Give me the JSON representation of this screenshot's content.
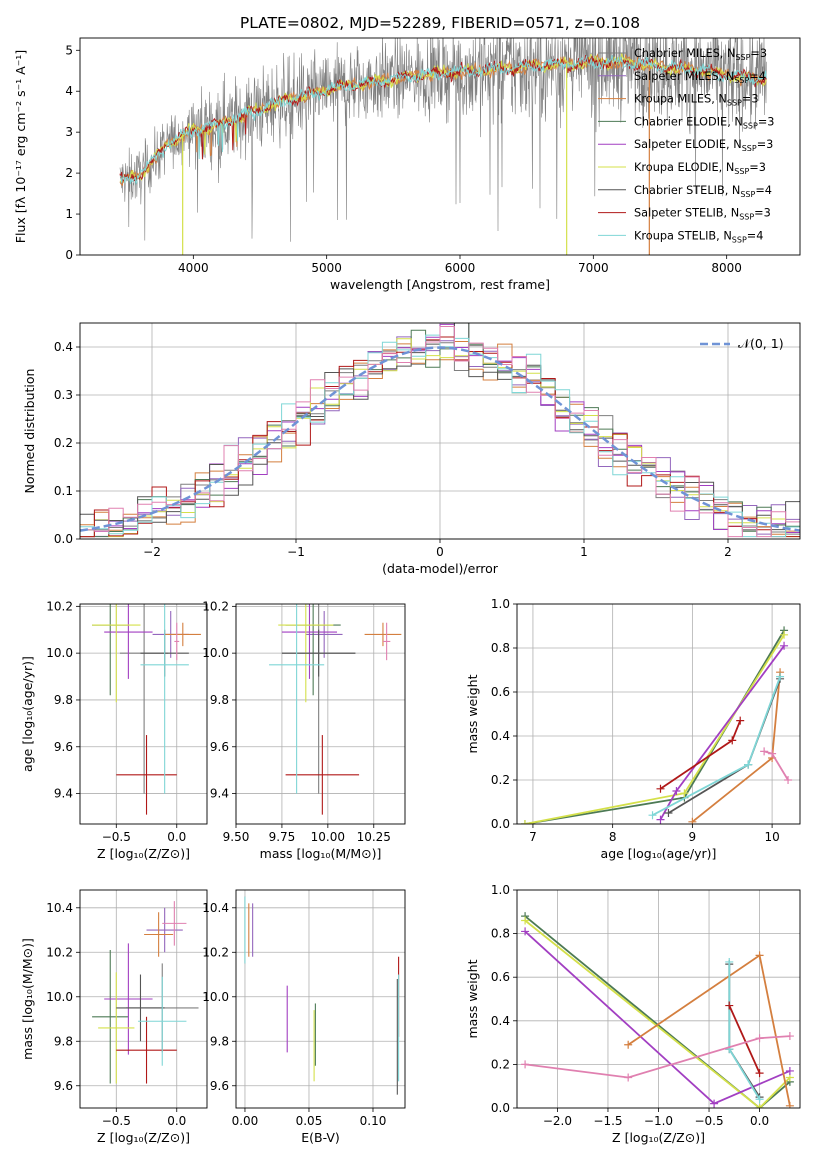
{
  "figure_title": "PLATE=0802, MJD=52289, FIBERID=0571, z=0.108",
  "colors": {
    "Chabrier MILES": "#7f7f7f",
    "Salpeter MILES": "#9467bd",
    "Kroupa MILES": "#d47f3f",
    "Chabrier ELODIE": "#4d7a55",
    "Salpeter ELODIE": "#a23fc2",
    "Kroupa ELODIE": "#d4e04a",
    "Chabrier STELIB": "#555555",
    "Salpeter STELIB": "#b01818",
    "Kroupa STELIB": "#7fd6d6",
    "normal_curve": "#6f93d6",
    "pink": "#e080b0"
  },
  "chart_data": [
    {
      "id": "spectrum",
      "type": "line",
      "title": "PLATE=0802, MJD=52289, FIBERID=0571, z=0.108",
      "xlabel": "wavelength [Angstrom, rest frame]",
      "ylabel": "Flux [fλ 10⁻¹⁷ erg cm⁻² s⁻¹ A⁻¹]",
      "xlim": [
        3150,
        8550
      ],
      "ylim": [
        0,
        5.3
      ],
      "xticks": [
        4000,
        5000,
        6000,
        7000,
        8000
      ],
      "yticks": [
        0,
        1,
        2,
        3,
        4,
        5
      ],
      "legend_position": "right",
      "legend": [
        {
          "label": "Chabrier MILES, N",
          "sub": "SSP",
          "suffix": "=3"
        },
        {
          "label": "Salpeter MILES, N",
          "sub": "SSP",
          "suffix": "=4"
        },
        {
          "label": "Kroupa MILES, N",
          "sub": "SSP",
          "suffix": "=3"
        },
        {
          "label": "Chabrier ELODIE, N",
          "sub": "SSP",
          "suffix": "=3"
        },
        {
          "label": "Salpeter ELODIE, N",
          "sub": "SSP",
          "suffix": "=3"
        },
        {
          "label": "Kroupa ELODIE, N",
          "sub": "SSP",
          "suffix": "=3"
        },
        {
          "label": "Chabrier STELIB, N",
          "sub": "SSP",
          "suffix": "=4"
        },
        {
          "label": "Salpeter STELIB, N",
          "sub": "SSP",
          "suffix": "=3"
        },
        {
          "label": "Kroupa STELIB, N",
          "sub": "SSP",
          "suffix": "=4"
        }
      ],
      "model_continuum": {
        "x": [
          3450,
          3600,
          3700,
          3800,
          3900,
          4000,
          4100,
          4200,
          4300,
          4400,
          4500,
          4700,
          4900,
          5100,
          5300,
          5500,
          5700,
          5900,
          6100,
          6300,
          6500,
          6700,
          6900,
          7100,
          7300,
          7500,
          7700,
          7900,
          8100,
          8300
        ],
        "y": [
          1.8,
          1.95,
          2.3,
          2.7,
          2.9,
          3.05,
          3.1,
          3.2,
          3.3,
          3.45,
          3.55,
          3.8,
          3.95,
          4.1,
          4.2,
          4.3,
          4.4,
          4.45,
          4.5,
          4.55,
          4.6,
          4.65,
          4.7,
          4.72,
          4.7,
          4.6,
          4.55,
          4.45,
          4.35,
          4.3
        ]
      }
    },
    {
      "id": "residuals",
      "type": "bar",
      "xlabel": "(data-model)/error",
      "ylabel": "Normed distribution",
      "xlim": [
        -2.5,
        2.5
      ],
      "ylim": [
        0,
        0.45
      ],
      "xticks": [
        -2,
        -1,
        0,
        1,
        2
      ],
      "yticks": [
        0.0,
        0.1,
        0.2,
        0.3,
        0.4
      ],
      "legend": [
        "𝒩(0, 1)"
      ],
      "bin_width": 0.1
    },
    {
      "id": "age_vs_Z",
      "type": "scatter",
      "xlabel": "Z [log₁₀(Z/Z⊙)]",
      "ylabel": "age  [log₁₀(age/yr)]",
      "xlim": [
        -0.8,
        0.25
      ],
      "ylim": [
        9.27,
        10.21
      ],
      "xticks": [
        -0.5,
        0.0
      ],
      "yticks": [
        9.4,
        9.6,
        9.8,
        10.0,
        10.2
      ],
      "points": [
        {
          "series": "Chabrier MILES",
          "x": -0.27,
          "y": 10.0,
          "xerr": 0.2,
          "yerr": 0.6
        },
        {
          "series": "Salpeter MILES",
          "x": -0.05,
          "y": 10.08,
          "xerr": 0.15,
          "yerr": 0.1
        },
        {
          "series": "Kroupa MILES",
          "x": 0.05,
          "y": 10.08,
          "xerr": 0.15,
          "yerr": 0.05
        },
        {
          "series": "Chabrier ELODIE",
          "x": -0.55,
          "y": 10.12,
          "xerr": 0.15,
          "yerr": 0.3
        },
        {
          "series": "Salpeter ELODIE",
          "x": -0.4,
          "y": 10.09,
          "xerr": 0.2,
          "yerr": 0.2
        },
        {
          "series": "Kroupa ELODIE",
          "x": -0.5,
          "y": 10.12,
          "xerr": 0.2,
          "yerr": 0.33
        },
        {
          "series": "Chabrier STELIB",
          "x": -0.1,
          "y": 10.0,
          "xerr": 0.2,
          "yerr": 0.1
        },
        {
          "series": "Salpeter STELIB",
          "x": -0.25,
          "y": 9.48,
          "xerr": 0.25,
          "yerr": 0.17
        },
        {
          "series": "Kroupa STELIB",
          "x": -0.1,
          "y": 9.95,
          "xerr": 0.2,
          "yerr": 0.55
        },
        {
          "series": "pink",
          "x": 0.0,
          "y": 10.05,
          "xerr": 0.02,
          "yerr": 0.08
        }
      ]
    },
    {
      "id": "age_vs_mass",
      "type": "scatter",
      "xlabel": "mass [log₁₀(M/M⊙)]",
      "ylabel": "",
      "xlim": [
        9.5,
        10.42
      ],
      "ylim": [
        9.27,
        10.21
      ],
      "xticks": [
        9.5,
        9.75,
        10.0,
        10.25
      ],
      "yticks": [
        9.4,
        9.6,
        9.8,
        10.0,
        10.2
      ],
      "points": [
        {
          "series": "Chabrier MILES",
          "x": 9.95,
          "y": 10.0,
          "xerr": 0.2,
          "yerr": 0.6
        },
        {
          "series": "Salpeter MILES",
          "x": 9.98,
          "y": 10.08,
          "xerr": 0.1,
          "yerr": 0.1
        },
        {
          "series": "Kroupa MILES",
          "x": 10.3,
          "y": 10.08,
          "xerr": 0.1,
          "yerr": 0.05
        },
        {
          "series": "Chabrier ELODIE",
          "x": 9.92,
          "y": 10.12,
          "xerr": 0.15,
          "yerr": 0.3
        },
        {
          "series": "Salpeter ELODIE",
          "x": 9.9,
          "y": 10.09,
          "xerr": 0.15,
          "yerr": 0.2
        },
        {
          "series": "Kroupa ELODIE",
          "x": 9.88,
          "y": 10.12,
          "xerr": 0.15,
          "yerr": 0.33
        },
        {
          "series": "Chabrier STELIB",
          "x": 9.95,
          "y": 10.0,
          "xerr": 0.2,
          "yerr": 0.1
        },
        {
          "series": "Salpeter STELIB",
          "x": 9.97,
          "y": 9.48,
          "xerr": 0.2,
          "yerr": 0.17
        },
        {
          "series": "Kroupa STELIB",
          "x": 9.83,
          "y": 9.95,
          "xerr": 0.15,
          "yerr": 0.55
        },
        {
          "series": "pink",
          "x": 10.32,
          "y": 10.05,
          "xerr": 0.02,
          "yerr": 0.08
        }
      ]
    },
    {
      "id": "massweight_vs_age",
      "type": "line",
      "xlabel": "age  [log₁₀(age/yr)]",
      "ylabel": "mass weight",
      "xlim": [
        6.8,
        10.35
      ],
      "ylim": [
        0,
        1
      ],
      "xticks": [
        7,
        8,
        9,
        10
      ],
      "yticks": [
        0.0,
        0.2,
        0.4,
        0.6,
        0.8,
        1.0
      ],
      "series": [
        {
          "name": "Chabrier ELODIE",
          "x": [
            6.9,
            8.9,
            10.15
          ],
          "y": [
            0.0,
            0.12,
            0.88
          ]
        },
        {
          "name": "Kroupa ELODIE",
          "x": [
            6.9,
            8.9,
            10.15
          ],
          "y": [
            0.0,
            0.14,
            0.86
          ]
        },
        {
          "name": "Salpeter ELODIE",
          "x": [
            8.6,
            8.8,
            10.15
          ],
          "y": [
            0.02,
            0.15,
            0.81
          ]
        },
        {
          "name": "Kroupa MILES",
          "x": [
            9.0,
            10.0,
            10.1
          ],
          "y": [
            0.01,
            0.3,
            0.69
          ]
        },
        {
          "name": "Chabrier STELIB",
          "x": [
            8.7,
            9.7,
            10.1
          ],
          "y": [
            0.05,
            0.27,
            0.66
          ]
        },
        {
          "name": "Kroupa STELIB",
          "x": [
            8.5,
            9.7,
            10.1
          ],
          "y": [
            0.04,
            0.27,
            0.67
          ]
        },
        {
          "name": "Salpeter STELIB",
          "x": [
            8.6,
            9.5,
            9.6
          ],
          "y": [
            0.16,
            0.38,
            0.47
          ]
        },
        {
          "name": "pink",
          "x": [
            9.9,
            10.0,
            10.2
          ],
          "y": [
            0.33,
            0.32,
            0.2
          ]
        }
      ]
    },
    {
      "id": "mass_vs_Z",
      "type": "scatter",
      "xlabel": "Z [log₁₀(Z/Z⊙)]",
      "ylabel": "mass [log₁₀(M/M⊙)]",
      "xlim": [
        -0.8,
        0.25
      ],
      "ylim": [
        9.5,
        10.48
      ],
      "xticks": [
        -0.5,
        0.0
      ],
      "yticks": [
        9.6,
        9.8,
        10.0,
        10.2,
        10.4
      ],
      "points": [
        {
          "series": "Chabrier MILES",
          "x": -0.12,
          "y": 9.95,
          "xerr": 0.3,
          "yerr": 0.2
        },
        {
          "series": "Salpeter MILES",
          "x": -0.1,
          "y": 10.3,
          "xerr": 0.15,
          "yerr": 0.1
        },
        {
          "series": "Kroupa MILES",
          "x": -0.15,
          "y": 10.28,
          "xerr": 0.12,
          "yerr": 0.1
        },
        {
          "series": "Chabrier ELODIE",
          "x": -0.55,
          "y": 9.91,
          "xerr": 0.15,
          "yerr": 0.3
        },
        {
          "series": "Salpeter ELODIE",
          "x": -0.4,
          "y": 9.99,
          "xerr": 0.2,
          "yerr": 0.25
        },
        {
          "series": "Kroupa ELODIE",
          "x": -0.5,
          "y": 9.86,
          "xerr": 0.15,
          "yerr": 0.25
        },
        {
          "series": "Chabrier STELIB",
          "x": -0.3,
          "y": 9.95,
          "xerr": 0.2,
          "yerr": 0.15
        },
        {
          "series": "Salpeter STELIB",
          "x": -0.25,
          "y": 9.76,
          "xerr": 0.25,
          "yerr": 0.15
        },
        {
          "series": "Kroupa STELIB",
          "x": -0.12,
          "y": 9.89,
          "xerr": 0.2,
          "yerr": 0.2
        },
        {
          "series": "pink",
          "x": -0.02,
          "y": 10.33,
          "xerr": 0.1,
          "yerr": 0.1
        }
      ]
    },
    {
      "id": "mass_vs_EBV",
      "type": "scatter",
      "xlabel": "E(B-V)",
      "ylabel": "",
      "xlim": [
        -0.007,
        0.125
      ],
      "ylim": [
        9.5,
        10.48
      ],
      "xticks": [
        0.0,
        0.05,
        0.1
      ],
      "yticks": [
        9.6,
        9.8,
        10.0,
        10.2,
        10.4
      ],
      "points": [
        {
          "series": "Chabrier MILES",
          "x": 0.0,
          "y": 10.3,
          "yerr": 0.15
        },
        {
          "series": "Kroupa MILES",
          "x": 0.003,
          "y": 10.3,
          "yerr": 0.12
        },
        {
          "series": "Kroupa STELIB",
          "x": 0.0,
          "y": 10.3,
          "yerr": 0.15
        },
        {
          "series": "Salpeter MILES",
          "x": 0.006,
          "y": 10.3,
          "yerr": 0.12
        },
        {
          "series": "Salpeter ELODIE",
          "x": 0.033,
          "y": 9.9,
          "yerr": 0.15
        },
        {
          "series": "Kroupa ELODIE",
          "x": 0.054,
          "y": 9.78,
          "yerr": 0.16
        },
        {
          "series": "Chabrier ELODIE",
          "x": 0.055,
          "y": 9.83,
          "yerr": 0.14
        },
        {
          "series": "Salpeter STELIB",
          "x": 0.12,
          "y": 10.0,
          "yerr": 0.18
        },
        {
          "series": "Chabrier STELIB",
          "x": 0.119,
          "y": 9.82,
          "yerr": 0.26
        },
        {
          "series": "Kroupa STELIB",
          "x": 0.12,
          "y": 9.86,
          "yerr": 0.24
        }
      ]
    },
    {
      "id": "massweight_vs_Z",
      "type": "line",
      "xlabel": "Z [log₁₀(Z/Z⊙)]",
      "ylabel": "mass weight",
      "xlim": [
        -2.4,
        0.4
      ],
      "ylim": [
        0,
        1
      ],
      "xticks": [
        -2.0,
        -1.5,
        -1.0,
        -0.5,
        0.0
      ],
      "yticks": [
        0.0,
        0.2,
        0.4,
        0.6,
        0.8,
        1.0
      ],
      "series": [
        {
          "name": "Chabrier ELODIE",
          "x": [
            -2.32,
            0.0,
            0.3
          ],
          "y": [
            0.88,
            0.0,
            0.12
          ]
        },
        {
          "name": "Kroupa ELODIE",
          "x": [
            -2.32,
            0.0,
            0.3
          ],
          "y": [
            0.86,
            0.0,
            0.14
          ]
        },
        {
          "name": "Salpeter ELODIE",
          "x": [
            -2.32,
            -0.45,
            0.3
          ],
          "y": [
            0.81,
            0.02,
            0.17
          ]
        },
        {
          "name": "Kroupa MILES",
          "x": [
            -1.3,
            0.0,
            0.3
          ],
          "y": [
            0.29,
            0.7,
            0.01
          ]
        },
        {
          "name": "Chabrier STELIB",
          "x": [
            -0.3,
            -0.3,
            0.0
          ],
          "y": [
            0.66,
            0.27,
            0.05
          ]
        },
        {
          "name": "Kroupa STELIB",
          "x": [
            -0.3,
            -0.3,
            0.0
          ],
          "y": [
            0.67,
            0.27,
            0.04
          ]
        },
        {
          "name": "Salpeter STELIB",
          "x": [
            -0.3,
            0.0
          ],
          "y": [
            0.47,
            0.16
          ]
        },
        {
          "name": "pink",
          "x": [
            -2.32,
            -1.3,
            0.0,
            0.3
          ],
          "y": [
            0.2,
            0.14,
            0.32,
            0.33
          ]
        }
      ]
    }
  ]
}
